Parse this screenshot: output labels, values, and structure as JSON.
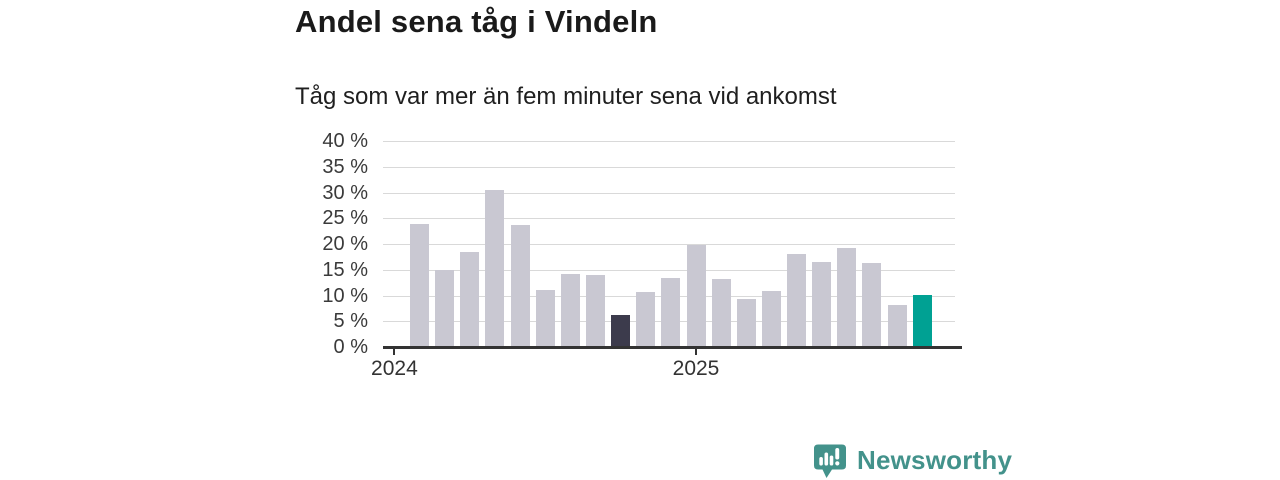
{
  "header": {
    "title": "Andel sena tåg i Vindeln",
    "subtitle": "Tåg som var mer än fem minuter sena vid ankomst"
  },
  "chart_data": {
    "type": "bar",
    "title": "Andel sena tåg i Vindeln",
    "subtitle": "Tåg som var mer än fem minuter sena vid ankomst",
    "xlabel": "",
    "ylabel": "",
    "ylim": [
      0,
      40
    ],
    "y_tick_step": 5,
    "y_tick_suffix": " %",
    "grid": true,
    "x_ticks": [
      {
        "label": "2024",
        "month": "2024-01"
      },
      {
        "label": "2025",
        "month": "2025-01"
      }
    ],
    "bars": [
      {
        "month": "2024-02",
        "value": 23.8,
        "color": "default"
      },
      {
        "month": "2024-03",
        "value": 14.9,
        "color": "default"
      },
      {
        "month": "2024-04",
        "value": 18.4,
        "color": "default"
      },
      {
        "month": "2024-05",
        "value": 30.4,
        "color": "default"
      },
      {
        "month": "2024-06",
        "value": 23.6,
        "color": "default"
      },
      {
        "month": "2024-07",
        "value": 11.0,
        "color": "default"
      },
      {
        "month": "2024-08",
        "value": 14.2,
        "color": "default"
      },
      {
        "month": "2024-09",
        "value": 13.9,
        "color": "default"
      },
      {
        "month": "2024-10",
        "value": 6.3,
        "color": "dark"
      },
      {
        "month": "2024-11",
        "value": 10.7,
        "color": "default"
      },
      {
        "month": "2024-12",
        "value": 13.4,
        "color": "default"
      },
      {
        "month": "2025-01",
        "value": 19.8,
        "color": "default"
      },
      {
        "month": "2025-02",
        "value": 13.3,
        "color": "default"
      },
      {
        "month": "2025-03",
        "value": 9.3,
        "color": "default"
      },
      {
        "month": "2025-04",
        "value": 10.9,
        "color": "default"
      },
      {
        "month": "2025-05",
        "value": 18.1,
        "color": "default"
      },
      {
        "month": "2025-06",
        "value": 16.6,
        "color": "default"
      },
      {
        "month": "2025-07",
        "value": 19.2,
        "color": "default"
      },
      {
        "month": "2025-08",
        "value": 16.3,
        "color": "default"
      },
      {
        "month": "2025-09",
        "value": 8.2,
        "color": "default"
      },
      {
        "month": "2025-10",
        "value": 10.1,
        "color": "teal"
      }
    ],
    "colors": {
      "default": "#c9c8d2",
      "dark": "#3c3b4c",
      "teal": "#00a193",
      "axis": "#333333",
      "gridline": "#d9d9d9"
    },
    "legend": null
  },
  "footer": {
    "brand": "Newsworthy",
    "brand_color": "#43928b",
    "logo_icon": "newsworthy-chart-bubble-icon"
  }
}
